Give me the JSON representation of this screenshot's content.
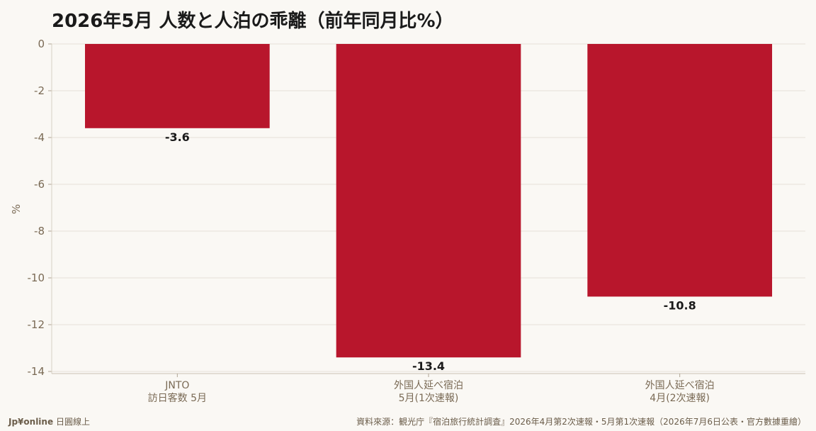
{
  "title": "2026年5月 人数と人泊の乖離（前年同月比%）",
  "brand": {
    "name": "Jp¥online",
    "suffix": "日圓線上"
  },
  "source": "資料來源：観光庁『宿泊旅行統計調査』2026年4月第2次速報・5月第1次速報（2026年7月6日公表・官方數據重繪）",
  "colors": {
    "bar": "#b8162c",
    "grid": "#e6e1d8",
    "axis_text": "#7a6a55",
    "label": "#1a1a1a"
  },
  "chart_data": {
    "type": "bar",
    "categories": [
      [
        "JNTO",
        "訪日客数 5月"
      ],
      [
        "外国人延べ宿泊",
        "5月(1次速報)"
      ],
      [
        "外国人延べ宿泊",
        "4月(2次速報)"
      ]
    ],
    "values": [
      -3.6,
      -13.4,
      -10.8
    ],
    "value_labels": [
      "-3.6",
      "-13.4",
      "-10.8"
    ],
    "ylabel": "%",
    "ylim": [
      -14,
      0
    ],
    "yticks": [
      0,
      -2,
      -4,
      -6,
      -8,
      -10,
      -12,
      -14
    ],
    "grid": true
  }
}
